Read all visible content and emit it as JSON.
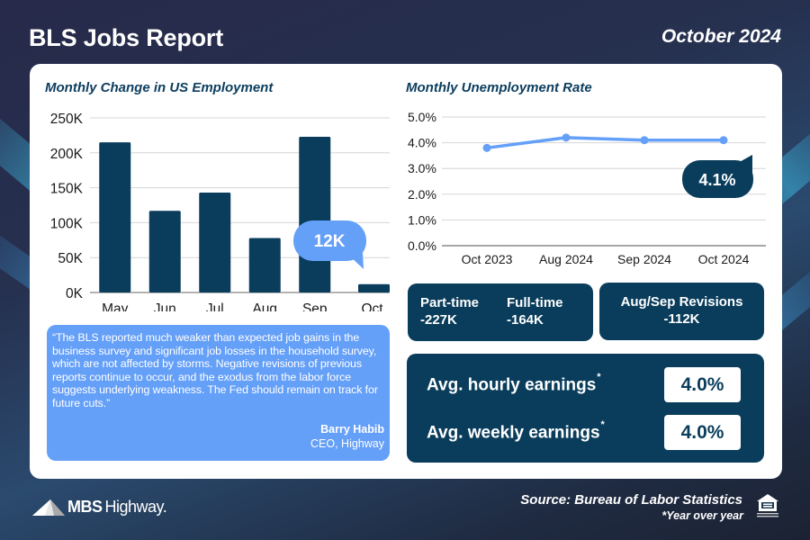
{
  "header": {
    "title": "BLS Jobs Report",
    "date": "October 2024"
  },
  "chart_data": [
    {
      "type": "bar",
      "title": "Monthly Change in US Employment",
      "categories": [
        "May",
        "Jun",
        "Jul",
        "Aug",
        "Sep",
        "Oct"
      ],
      "values": [
        215,
        117,
        143,
        78,
        223,
        12
      ],
      "units": "K",
      "ylim": [
        0,
        250
      ],
      "yticks": [
        0,
        50,
        100,
        150,
        200,
        250
      ],
      "ytick_labels": [
        "0K",
        "50K",
        "100K",
        "150K",
        "200K",
        "250K"
      ],
      "grid": true,
      "bar_color": "#0a3d5c",
      "callout": {
        "label": "12K",
        "category": "Oct",
        "color": "#649ff8"
      }
    },
    {
      "type": "line",
      "title": "Monthly Unemployment Rate",
      "categories": [
        "Oct 2023",
        "Aug 2024",
        "Sep 2024",
        "Oct 2024"
      ],
      "values": [
        3.8,
        4.2,
        4.1,
        4.1
      ],
      "units": "%",
      "ylim": [
        0,
        5
      ],
      "yticks": [
        0,
        1,
        2,
        3,
        4,
        5
      ],
      "ytick_labels": [
        "0.0%",
        "1.0%",
        "2.0%",
        "3.0%",
        "4.0%",
        "5.0%"
      ],
      "grid": true,
      "line_color": "#649ff8",
      "callout": {
        "label": "4.1%",
        "category": "Oct 2024",
        "color": "#0a3d5c"
      }
    }
  ],
  "quote": {
    "text": "“The BLS reported much weaker than expected job gains in the business survey and significant job losses in the household survey, which are not affected by storms. Negative revisions of previous reports continue to occur, and the exodus from the labor force suggests underlying weakness. The Fed should remain on track for future cuts.”",
    "name": "Barry Habib",
    "role": "CEO, Highway"
  },
  "stats": {
    "part_time_label": "Part-time",
    "part_time_value": "-227K",
    "full_time_label": "Full-time",
    "full_time_value": "-164K",
    "revisions_label": "Aug/Sep Revisions",
    "revisions_value": "-112K"
  },
  "earnings": {
    "hourly_label": "Avg. hourly earnings",
    "hourly_value": "4.0%",
    "weekly_label": "Avg. weekly earnings",
    "weekly_value": "4.0%",
    "asterisk": "*"
  },
  "footer": {
    "logo_bold": "MBS",
    "logo_light": "Highway.",
    "source": "Source: Bureau of Labor Statistics",
    "footnote": "*Year over year"
  },
  "colors": {
    "navy": "#0a3d5c",
    "accent_blue": "#649ff8",
    "title_navy": "#0b3d5e"
  }
}
